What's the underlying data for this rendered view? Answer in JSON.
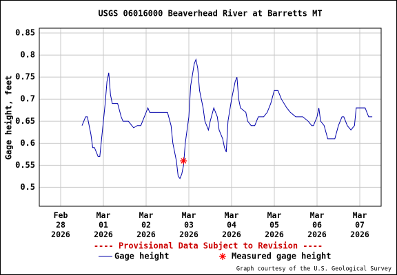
{
  "chart_data": {
    "type": "line",
    "title": "USGS 06016000 Beaverhead River at Barretts MT",
    "ylabel": "Gage height, feet",
    "note": "---- Provisional Data Subject to Revision ----",
    "credit": "Graph courtesy of the U.S. Geological Survey",
    "ylim": [
      0.457,
      0.861
    ],
    "yticks": [
      0.5,
      0.55,
      0.6,
      0.65,
      0.7,
      0.75,
      0.8,
      0.85
    ],
    "xlim": [
      "2026-02-27T12:00",
      "2026-03-07T12:00"
    ],
    "xticks": [
      {
        "value": "2026-02-28T00:00",
        "label": "Feb\n28\n2026"
      },
      {
        "value": "2026-03-01T00:00",
        "label": "Mar\n01\n2026"
      },
      {
        "value": "2026-03-02T00:00",
        "label": "Mar\n02\n2026"
      },
      {
        "value": "2026-03-03T00:00",
        "label": "Mar\n03\n2026"
      },
      {
        "value": "2026-03-04T00:00",
        "label": "Mar\n04\n2026"
      },
      {
        "value": "2026-03-05T00:00",
        "label": "Mar\n05\n2026"
      },
      {
        "value": "2026-03-06T00:00",
        "label": "Mar\n06\n2026"
      },
      {
        "value": "2026-03-07T00:00",
        "label": "Mar\n07\n2026"
      }
    ],
    "grid": true,
    "series": [
      {
        "name": "Gage height",
        "color": "#0000aa",
        "x": [
          "2026-02-28T12:00",
          "2026-02-28T14:00",
          "2026-02-28T15:00",
          "2026-02-28T17:00",
          "2026-02-28T18:00",
          "2026-02-28T19:00",
          "2026-02-28T21:00",
          "2026-02-28T22:00",
          "2026-02-28T23:00",
          "2026-03-01T01:00",
          "2026-03-01T02:00",
          "2026-03-01T03:00",
          "2026-03-01T04:00",
          "2026-03-01T05:00",
          "2026-03-01T08:00",
          "2026-03-01T10:00",
          "2026-03-01T11:00",
          "2026-03-01T14:00",
          "2026-03-01T16:00",
          "2026-03-01T17:00",
          "2026-03-01T19:00",
          "2026-03-01T21:00",
          "2026-03-01T23:00",
          "2026-03-02T01:00",
          "2026-03-02T02:00",
          "2026-03-02T09:00",
          "2026-03-02T12:00",
          "2026-03-02T14:00",
          "2026-03-02T15:00",
          "2026-03-02T17:00",
          "2026-03-02T18:00",
          "2026-03-02T19:00",
          "2026-03-02T20:00",
          "2026-03-02T21:00",
          "2026-03-02T22:00",
          "2026-03-03T00:00",
          "2026-03-03T01:00",
          "2026-03-03T03:00",
          "2026-03-03T04:00",
          "2026-03-03T05:00",
          "2026-03-03T06:00",
          "2026-03-03T08:00",
          "2026-03-03T09:00",
          "2026-03-03T11:00",
          "2026-03-03T12:00",
          "2026-03-03T14:00",
          "2026-03-03T16:00",
          "2026-03-03T17:00",
          "2026-03-03T19:00",
          "2026-03-03T20:00",
          "2026-03-03T21:00",
          "2026-03-03T22:00",
          "2026-03-04T00:00",
          "2026-03-04T02:00",
          "2026-03-04T03:00",
          "2026-03-04T04:00",
          "2026-03-04T05:00",
          "2026-03-04T08:00",
          "2026-03-04T09:00",
          "2026-03-04T11:00",
          "2026-03-04T13:00",
          "2026-03-04T15:00",
          "2026-03-04T18:00",
          "2026-03-04T20:00",
          "2026-03-04T22:00",
          "2026-03-05T00:00",
          "2026-03-05T02:00",
          "2026-03-05T04:00",
          "2026-03-05T07:00",
          "2026-03-05T09:00",
          "2026-03-05T12:00",
          "2026-03-05T16:00",
          "2026-03-05T19:00",
          "2026-03-05T21:00",
          "2026-03-05T22:00",
          "2026-03-06T00:00",
          "2026-03-06T01:00",
          "2026-03-06T02:00",
          "2026-03-06T04:00",
          "2026-03-06T06:00",
          "2026-03-06T10:00",
          "2026-03-06T12:00",
          "2026-03-06T14:00",
          "2026-03-06T15:00",
          "2026-03-06T17:00",
          "2026-03-06T19:00",
          "2026-03-06T21:00",
          "2026-03-06T22:00",
          "2026-03-07T03:00",
          "2026-03-07T04:00",
          "2026-03-07T05:00",
          "2026-03-07T07:00"
        ],
        "values": [
          0.64,
          0.66,
          0.66,
          0.62,
          0.59,
          0.59,
          0.57,
          0.57,
          0.61,
          0.69,
          0.74,
          0.76,
          0.71,
          0.69,
          0.69,
          0.66,
          0.65,
          0.65,
          0.64,
          0.635,
          0.64,
          0.64,
          0.66,
          0.68,
          0.67,
          0.67,
          0.67,
          0.64,
          0.6,
          0.56,
          0.525,
          0.52,
          0.53,
          0.55,
          0.6,
          0.66,
          0.73,
          0.78,
          0.79,
          0.77,
          0.72,
          0.68,
          0.65,
          0.63,
          0.65,
          0.68,
          0.66,
          0.63,
          0.61,
          0.59,
          0.58,
          0.65,
          0.7,
          0.74,
          0.75,
          0.7,
          0.68,
          0.67,
          0.65,
          0.64,
          0.64,
          0.66,
          0.66,
          0.67,
          0.69,
          0.72,
          0.72,
          0.7,
          0.68,
          0.67,
          0.66,
          0.66,
          0.65,
          0.64,
          0.64,
          0.66,
          0.68,
          0.65,
          0.64,
          0.61,
          0.61,
          0.64,
          0.66,
          0.66,
          0.64,
          0.63,
          0.64,
          0.68,
          0.68,
          0.67,
          0.66,
          0.66
        ]
      },
      {
        "name": "Measured gage height",
        "color": "#ff0000",
        "marker": "asterisk",
        "x": [
          "2026-03-02T21:00"
        ],
        "values": [
          0.56
        ]
      }
    ]
  }
}
